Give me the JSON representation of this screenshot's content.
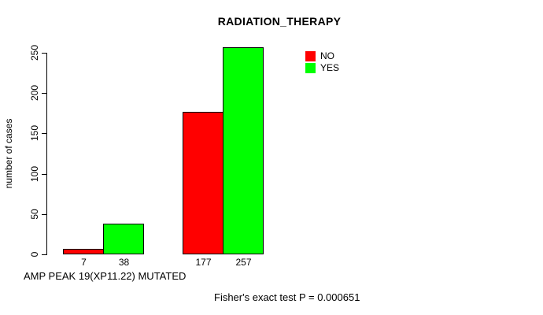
{
  "chart_data": {
    "type": "bar",
    "title": "RADIATION_THERAPY",
    "xlabel": "AMP PEAK 19(XP11.22) MUTATED",
    "ylabel": "number of cases",
    "categories": [
      "",
      ""
    ],
    "series": [
      {
        "name": "NO",
        "color": "#FF0000",
        "values": [
          7,
          177
        ]
      },
      {
        "name": "YES",
        "color": "#00FF00",
        "values": [
          38,
          257
        ]
      }
    ],
    "bar_value_labels": [
      "7",
      "38",
      "177",
      "257"
    ],
    "ylim": [
      0,
      250
    ],
    "yticks": [
      0,
      50,
      100,
      150,
      200,
      250
    ],
    "grid": false,
    "legend_position": "top-right",
    "annotation": "Fisher's exact test P = 0.000651"
  }
}
